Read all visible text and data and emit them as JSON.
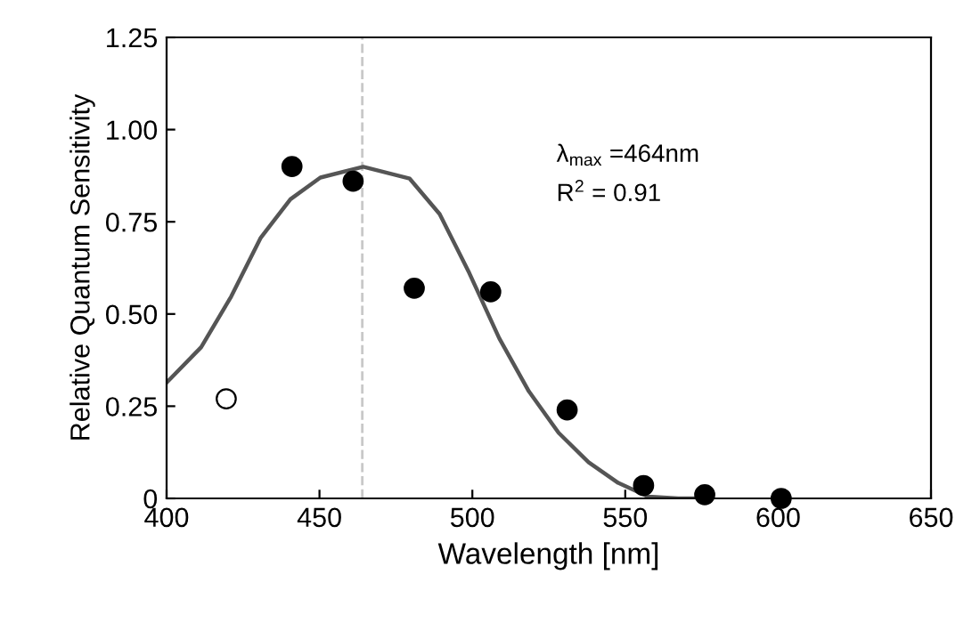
{
  "chart_data": {
    "type": "scatter",
    "xlabel": "Wavelength [nm]",
    "ylabel": "Relative Quantum Sensitivity",
    "series": [
      {
        "type": "line",
        "marker": "none",
        "color": "#555555",
        "x": [
          400,
          411.3,
          421.1,
          430.8,
          440.5,
          450.3,
          464.3,
          479.5,
          489.3,
          499.0,
          508.8,
          518.5,
          528.2,
          538.0,
          547.7,
          557.5,
          567.3,
          575
        ],
        "values": [
          0.314,
          0.41,
          0.547,
          0.707,
          0.811,
          0.87,
          0.899,
          0.867,
          0.771,
          0.611,
          0.434,
          0.29,
          0.178,
          0.098,
          0.042,
          0.005,
          0.0,
          0.0
        ]
      },
      {
        "color": "#000000",
        "x": [
          441,
          461,
          481,
          506,
          531,
          556,
          576,
          601
        ],
        "values": [
          0.9,
          0.86,
          0.57,
          0.56,
          0.24,
          0.035,
          0.01,
          0.0
        ]
      },
      {
        "color": "#ffffff",
        "x": [
          419.5
        ],
        "values": [
          0.27
        ]
      }
    ],
    "ref_lines": [
      {
        "axis": "x",
        "value": 464,
        "color": "#c8c8c8",
        "line_style": "dashed"
      }
    ],
    "annotations": [
      "λ$_{max}$ =464nm",
      "R$^{2}$ = 0.91"
    ],
    "xlim": [
      400,
      650
    ],
    "xticks": [
      400,
      450,
      500,
      550,
      600,
      650
    ],
    "ylim": [
      0,
      1.25
    ],
    "yticks": [
      0,
      0.25,
      {
        "value": 0.5,
        "label": "0.50"
      },
      0.75,
      {
        "value": 1,
        "label": "1.00"
      },
      1.25
    ],
    "marker": "circle",
    "grid": false
  }
}
